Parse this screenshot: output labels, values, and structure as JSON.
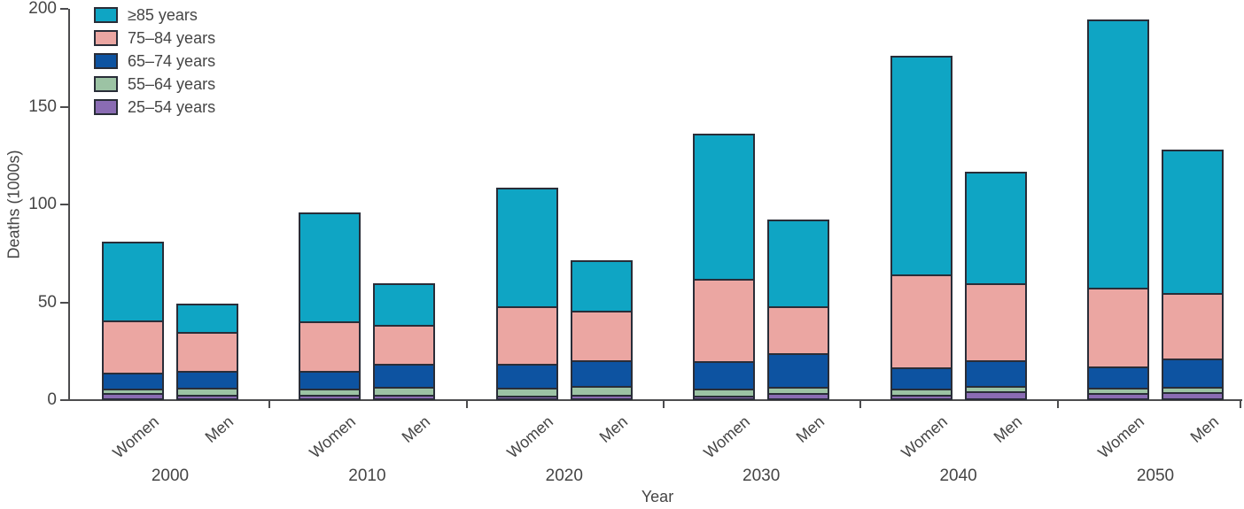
{
  "chart_data": {
    "type": "bar",
    "stacked": true,
    "title": "",
    "ylabel": "Deaths (1000s)",
    "xlabel": "Year",
    "ylim": [
      0,
      200
    ],
    "yticks": [
      "0",
      "50",
      "100",
      "150",
      "200"
    ],
    "grid": false,
    "legend_position": "top-left-inside",
    "legend_top_to_bottom": [
      "≥85 years",
      "75–84 years",
      "65–74 years",
      "55–64 years",
      "25–54 years"
    ],
    "age_bands_bottom_to_top": [
      "25–54 years",
      "55–64 years",
      "65–74 years",
      "75–84 years",
      "≥85 years"
    ],
    "band_colors": {
      "≥85 years": "#0fa5c4",
      "75–84 years": "#eba6a2",
      "65–74 years": "#0d53a1",
      "55–64 years": "#9cc3a4",
      "25–54 years": "#8a6cb3"
    },
    "groups": [
      "2000",
      "2010",
      "2020",
      "2030",
      "2040",
      "2050"
    ],
    "subgroups": [
      "Women",
      "Men"
    ],
    "bars": [
      {
        "year": "2000",
        "sex": "Women",
        "values": [
          2.5,
          2.5,
          8,
          27,
          40
        ]
      },
      {
        "year": "2000",
        "sex": "Men",
        "values": [
          2,
          3.5,
          8.5,
          20,
          14.5
        ]
      },
      {
        "year": "2010",
        "sex": "Women",
        "values": [
          2,
          3,
          9,
          25.5,
          55.5
        ]
      },
      {
        "year": "2010",
        "sex": "Men",
        "values": [
          2,
          4,
          11.5,
          20,
          21.5
        ]
      },
      {
        "year": "2020",
        "sex": "Women",
        "values": [
          1.5,
          4,
          12,
          29.5,
          60.5
        ]
      },
      {
        "year": "2020",
        "sex": "Men",
        "values": [
          2,
          4.5,
          13,
          25.5,
          25.5
        ]
      },
      {
        "year": "2030",
        "sex": "Women",
        "values": [
          1.5,
          3.5,
          14,
          42,
          74.5
        ]
      },
      {
        "year": "2030",
        "sex": "Men",
        "values": [
          2.5,
          3.5,
          17,
          24,
          44.5
        ]
      },
      {
        "year": "2040",
        "sex": "Women",
        "values": [
          2,
          3,
          11,
          47.5,
          111.5
        ]
      },
      {
        "year": "2040",
        "sex": "Men",
        "values": [
          3.5,
          3,
          13,
          39.5,
          57
        ]
      },
      {
        "year": "2050",
        "sex": "Women",
        "values": [
          2.5,
          3,
          11,
          40,
          137
        ]
      },
      {
        "year": "2050",
        "sex": "Men",
        "values": [
          3,
          3,
          14.5,
          33.5,
          73
        ]
      }
    ]
  },
  "colors": {
    "bar_border": "#292d38",
    "axis": "#4c4c4e",
    "text": "#454545",
    "background": "#ffffff"
  }
}
